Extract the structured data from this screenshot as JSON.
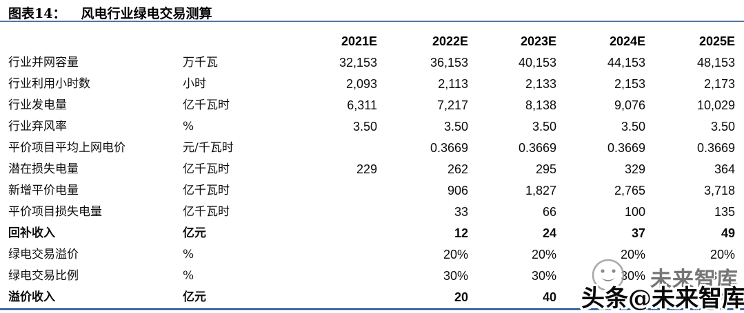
{
  "figure": {
    "label": "图表14：",
    "title": "风电行业绿电交易测算"
  },
  "table": {
    "years": [
      "2021E",
      "2022E",
      "2023E",
      "2024E",
      "2025E"
    ],
    "rows": [
      {
        "label": "行业并网容量",
        "unit": "万千瓦",
        "bold": false,
        "values": [
          "32,153",
          "36,153",
          "40,153",
          "44,153",
          "48,153"
        ]
      },
      {
        "label": "行业利用小时数",
        "unit": "小时",
        "bold": false,
        "values": [
          "2,093",
          "2,113",
          "2,133",
          "2,153",
          "2,173"
        ]
      },
      {
        "label": "行业发电量",
        "unit": "亿千瓦时",
        "bold": false,
        "values": [
          "6,311",
          "7,217",
          "8,138",
          "9,076",
          "10,029"
        ]
      },
      {
        "label": "行业弃风率",
        "unit": "%",
        "bold": false,
        "values": [
          "3.50",
          "3.50",
          "3.50",
          "3.50",
          "3.50"
        ]
      },
      {
        "label": "平价项目平均上网电价",
        "unit": "元/千瓦时",
        "bold": false,
        "values": [
          "",
          "0.3669",
          "0.3669",
          "0.3669",
          "0.3669"
        ]
      },
      {
        "label": "潜在损失电量",
        "unit": "亿千瓦时",
        "bold": false,
        "values": [
          "229",
          "262",
          "295",
          "329",
          "364"
        ]
      },
      {
        "label": "新增平价电量",
        "unit": "亿千瓦时",
        "bold": false,
        "values": [
          "",
          "906",
          "1,827",
          "2,765",
          "3,718"
        ]
      },
      {
        "label": "平价项目损失电量",
        "unit": "亿千瓦时",
        "bold": false,
        "values": [
          "",
          "33",
          "66",
          "100",
          "135"
        ]
      },
      {
        "label": "回补收入",
        "unit": "亿元",
        "bold": true,
        "values": [
          "",
          "12",
          "24",
          "37",
          "49"
        ]
      },
      {
        "label": "绿电交易溢价",
        "unit": "%",
        "bold": false,
        "values": [
          "",
          "20%",
          "20%",
          "20%",
          "20%"
        ]
      },
      {
        "label": "绿电交易比例",
        "unit": "%",
        "bold": false,
        "values": [
          "",
          "30%",
          "30%",
          "30%",
          "30%"
        ]
      },
      {
        "label": "溢价收入",
        "unit": "亿元",
        "bold": true,
        "values": [
          "",
          "20",
          "40",
          "61",
          "82"
        ]
      }
    ]
  },
  "watermark": {
    "ghost_text": "未来智库",
    "main_text": "头条@未来智库",
    "face_icon": "smiley-face-icon"
  },
  "colors": {
    "rule_top": "#53749f",
    "rule_bottom": "#3a6ba3",
    "text": "#0c0c0c",
    "background": "#ffffff"
  }
}
